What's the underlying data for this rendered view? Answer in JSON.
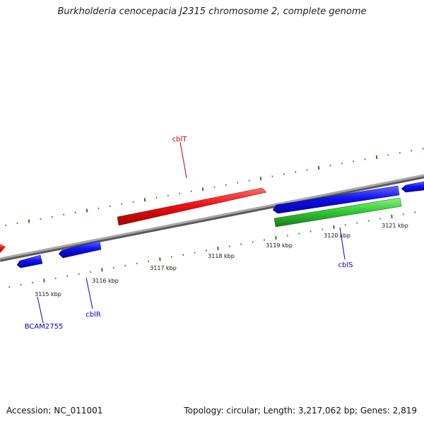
{
  "title": "Burkholderia cenocepacia J2315 chromosome 2, complete genome",
  "footer": {
    "accession": "Accession: NC_011001",
    "stats": "Topology: circular; Length: 3,217,062 bp; Genes: 2,819"
  },
  "colors": {
    "backbone": "#8a8a8a",
    "tick": "#2e7d1e",
    "forward_gene": "#ee1111",
    "reverse_gene": "#1111ee",
    "rna_gene": "#33cc33",
    "forward_label": "#cc0000",
    "reverse_label": "#0000cc"
  },
  "ruler": {
    "labels": [
      "3115 kbp",
      "3116 kbp",
      "3117 kbp",
      "3118 kbp",
      "3119 kbp",
      "3120 kbp",
      "3121 kbp"
    ]
  },
  "genes": [
    {
      "name": "cblT",
      "strand": "forward",
      "type": "protein"
    },
    {
      "name": "BCAM2755",
      "strand": "reverse",
      "type": "protein"
    },
    {
      "name": "cblR",
      "strand": "reverse",
      "type": "protein"
    },
    {
      "name": "cblS",
      "strand": "reverse",
      "type": "rna"
    }
  ]
}
